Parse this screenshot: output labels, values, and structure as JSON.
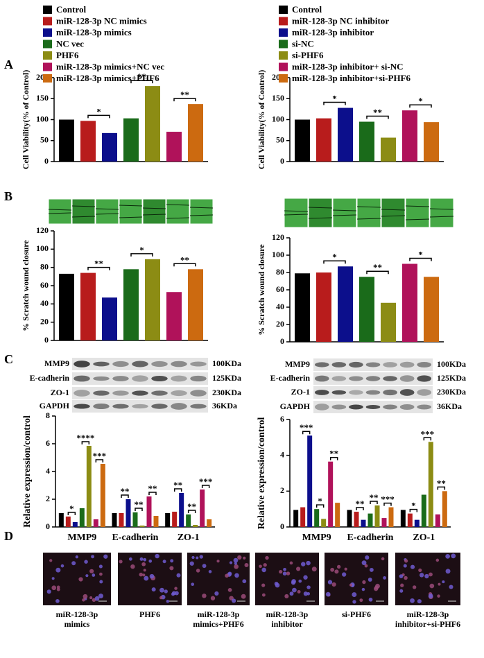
{
  "panel_labels": [
    "A",
    "B",
    "C",
    "D"
  ],
  "chart_data": [
    {
      "type": "bar",
      "y_label": "Cell Viability(% of Control)",
      "ylim": [
        0,
        200
      ],
      "yticks": [
        0,
        50,
        100,
        150,
        200
      ],
      "categories": [
        null
      ],
      "series": [
        {
          "name": "Control",
          "color": "#000000",
          "values": [
            100
          ]
        },
        {
          "name": "miR-128-3p NC mimics",
          "color": "#b81c1c",
          "values": [
            97
          ]
        },
        {
          "name": "miR-128-3p mimics",
          "color": "#0c0f8c",
          "values": [
            68
          ]
        },
        {
          "name": "NC vec",
          "color": "#1a6b1a",
          "values": [
            103
          ]
        },
        {
          "name": "PHF6",
          "color": "#8c8c14",
          "values": [
            180
          ]
        },
        {
          "name": "miR-128-3p mimics+NC vec",
          "color": "#b0125a",
          "values": [
            71
          ]
        },
        {
          "name": "miR-128-3p mimics+PHF6",
          "color": "#cc6a10",
          "values": [
            137
          ]
        }
      ],
      "annotations": [
        {
          "text": "*",
          "between": [
            1,
            2
          ]
        },
        {
          "text": "**",
          "between": [
            3,
            4
          ]
        },
        {
          "text": "**",
          "between": [
            5,
            6
          ]
        }
      ]
    },
    {
      "type": "bar",
      "y_label": "Cell Viability(% of Control)",
      "ylim": [
        0,
        200
      ],
      "yticks": [
        0,
        50,
        100,
        150,
        200
      ],
      "categories": [
        null
      ],
      "series": [
        {
          "name": "Control",
          "color": "#000000",
          "values": [
            100
          ]
        },
        {
          "name": "miR-128-3p NC inhibitor",
          "color": "#b81c1c",
          "values": [
            103
          ]
        },
        {
          "name": "miR-128-3p inhibitor",
          "color": "#0c0f8c",
          "values": [
            128
          ]
        },
        {
          "name": "si-NC",
          "color": "#1a6b1a",
          "values": [
            95
          ]
        },
        {
          "name": "si-PHF6",
          "color": "#8c8c14",
          "values": [
            57
          ]
        },
        {
          "name": "miR-128-3p inhibitor+ si-NC",
          "color": "#b0125a",
          "values": [
            122
          ]
        },
        {
          "name": "miR-128-3p inhibitor+si-PHF6",
          "color": "#cc6a10",
          "values": [
            94
          ]
        }
      ],
      "annotations": [
        {
          "text": "*",
          "between": [
            1,
            2
          ]
        },
        {
          "text": "**",
          "between": [
            3,
            4
          ]
        },
        {
          "text": "*",
          "between": [
            5,
            6
          ]
        }
      ]
    },
    {
      "type": "bar",
      "y_label": "% Scratch wound closure",
      "ylim": [
        0,
        120
      ],
      "yticks": [
        0,
        20,
        40,
        60,
        80,
        100,
        120
      ],
      "categories": [
        null
      ],
      "series": [
        {
          "color": "#000000",
          "values": [
            73
          ]
        },
        {
          "color": "#b81c1c",
          "values": [
            74
          ]
        },
        {
          "color": "#0c0f8c",
          "values": [
            47
          ]
        },
        {
          "color": "#1a6b1a",
          "values": [
            78
          ]
        },
        {
          "color": "#8c8c14",
          "values": [
            89
          ]
        },
        {
          "color": "#b0125a",
          "values": [
            53
          ]
        },
        {
          "color": "#cc6a10",
          "values": [
            78
          ]
        }
      ],
      "annotations": [
        {
          "text": "**",
          "between": [
            1,
            2
          ]
        },
        {
          "text": "*",
          "between": [
            3,
            4
          ]
        },
        {
          "text": "**",
          "between": [
            5,
            6
          ]
        }
      ]
    },
    {
      "type": "bar",
      "y_label": "% Scratch wound closure",
      "ylim": [
        0,
        120
      ],
      "yticks": [
        0,
        20,
        40,
        60,
        80,
        100,
        120
      ],
      "categories": [
        null
      ],
      "series": [
        {
          "color": "#000000",
          "values": [
            79
          ]
        },
        {
          "color": "#b81c1c",
          "values": [
            80
          ]
        },
        {
          "color": "#0c0f8c",
          "values": [
            87
          ]
        },
        {
          "color": "#1a6b1a",
          "values": [
            75
          ]
        },
        {
          "color": "#8c8c14",
          "values": [
            45
          ]
        },
        {
          "color": "#b0125a",
          "values": [
            90
          ]
        },
        {
          "color": "#cc6a10",
          "values": [
            75
          ]
        }
      ],
      "annotations": [
        {
          "text": "*",
          "between": [
            1,
            2
          ]
        },
        {
          "text": "**",
          "between": [
            3,
            4
          ]
        },
        {
          "text": "*",
          "between": [
            5,
            6
          ]
        }
      ]
    },
    {
      "type": "bar",
      "y_label": "Relative expression/control",
      "ylim": [
        0,
        8
      ],
      "yticks": [
        0,
        2,
        4,
        6,
        8
      ],
      "categories": [
        "MMP9",
        "E-cadherin",
        "ZO-1"
      ],
      "series": [
        {
          "color": "#000000",
          "values": [
            1.0,
            1.0,
            1.0
          ]
        },
        {
          "color": "#b81c1c",
          "values": [
            0.75,
            1.0,
            1.1
          ]
        },
        {
          "color": "#0c0f8c",
          "values": [
            0.35,
            2.0,
            2.45
          ]
        },
        {
          "color": "#1a6b1a",
          "values": [
            1.35,
            1.05,
            0.9
          ]
        },
        {
          "color": "#8c8c14",
          "values": [
            5.85,
            0.1,
            0.15
          ]
        },
        {
          "color": "#b0125a",
          "values": [
            0.55,
            2.2,
            2.7
          ]
        },
        {
          "color": "#cc6a10",
          "values": [
            4.55,
            0.8,
            0.55
          ]
        }
      ],
      "annotations": [
        {
          "text": "*",
          "category": 0,
          "between": [
            1,
            2
          ]
        },
        {
          "text": "****",
          "category": 0,
          "between": [
            3,
            4
          ]
        },
        {
          "text": "***",
          "category": 0,
          "between": [
            5,
            6
          ]
        },
        {
          "text": "**",
          "category": 1,
          "between": [
            1,
            2
          ]
        },
        {
          "text": "**",
          "category": 1,
          "between": [
            3,
            4
          ]
        },
        {
          "text": "**",
          "category": 1,
          "between": [
            5,
            6
          ]
        },
        {
          "text": "**",
          "category": 2,
          "between": [
            1,
            2
          ]
        },
        {
          "text": "**",
          "category": 2,
          "between": [
            3,
            4
          ]
        },
        {
          "text": "***",
          "category": 2,
          "between": [
            5,
            6
          ]
        }
      ]
    },
    {
      "type": "bar",
      "y_label": "Relative expression/control",
      "ylim": [
        0,
        6
      ],
      "yticks": [
        0,
        2,
        4,
        6
      ],
      "categories": [
        "MMP9",
        "E-cadherin",
        "ZO-1"
      ],
      "series": [
        {
          "color": "#000000",
          "values": [
            0.95,
            0.95,
            0.95
          ]
        },
        {
          "color": "#b81c1c",
          "values": [
            1.1,
            0.85,
            0.75
          ]
        },
        {
          "color": "#0c0f8c",
          "values": [
            5.1,
            0.4,
            0.4
          ]
        },
        {
          "color": "#1a6b1a",
          "values": [
            1.0,
            0.75,
            1.8
          ]
        },
        {
          "color": "#8c8c14",
          "values": [
            0.45,
            1.2,
            4.75
          ]
        },
        {
          "color": "#b0125a",
          "values": [
            3.65,
            0.5,
            0.7
          ]
        },
        {
          "color": "#cc6a10",
          "values": [
            1.35,
            1.1,
            2.0
          ]
        }
      ],
      "annotations": [
        {
          "text": "***",
          "category": 0,
          "between": [
            1,
            2
          ]
        },
        {
          "text": "*",
          "category": 0,
          "between": [
            3,
            4
          ]
        },
        {
          "text": "**",
          "category": 0,
          "between": [
            5,
            6
          ]
        },
        {
          "text": "**",
          "category": 1,
          "between": [
            1,
            2
          ]
        },
        {
          "text": "**",
          "category": 1,
          "between": [
            3,
            4
          ]
        },
        {
          "text": "***",
          "category": 1,
          "between": [
            5,
            6
          ]
        },
        {
          "text": "*",
          "category": 2,
          "between": [
            1,
            2
          ]
        },
        {
          "text": "***",
          "category": 2,
          "between": [
            3,
            4
          ]
        },
        {
          "text": "**",
          "category": 2,
          "between": [
            5,
            6
          ]
        }
      ]
    }
  ],
  "blots": [
    {
      "rows": [
        {
          "protein": "MMP9",
          "size": "100KDa"
        },
        {
          "protein": "E-cadherin",
          "size": "125KDa"
        },
        {
          "protein": "ZO-1",
          "size": "230KDa"
        },
        {
          "protein": "GAPDH",
          "size": "36KDa"
        }
      ]
    },
    {
      "rows": [
        {
          "protein": "MMP9",
          "size": "100KDa"
        },
        {
          "protein": "E-cadherin",
          "size": "125KDa"
        },
        {
          "protein": "ZO-1",
          "size": "230KDa"
        },
        {
          "protein": "GAPDH",
          "size": "36KDa"
        }
      ]
    }
  ],
  "micrographs": [
    [
      "miR-128-3p",
      "mimics"
    ],
    [
      "PHF6"
    ],
    [
      "miR-128-3p",
      "mimics+PHF6"
    ],
    [
      "miR-128-3p",
      "inhibitor"
    ],
    [
      "si-PHF6"
    ],
    [
      "miR-128-3p",
      "inhibitor+si-PHF6"
    ]
  ]
}
